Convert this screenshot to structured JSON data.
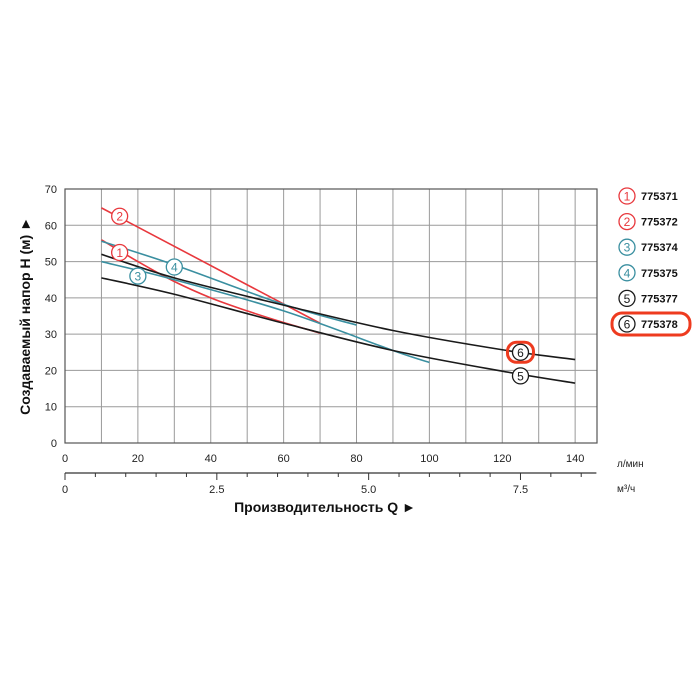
{
  "chart_data": {
    "type": "line",
    "ylabel": "Создаваемый напор Н (м) ►",
    "xlabel": "Производительность Q ►",
    "x_unit": "л/мин",
    "x2_unit": "м³/ч",
    "xlim": [
      0,
      146
    ],
    "ylim": [
      0,
      70
    ],
    "x_ticks": [
      0,
      20,
      40,
      60,
      80,
      100,
      120,
      140
    ],
    "y_ticks": [
      0,
      10,
      20,
      30,
      40,
      50,
      60,
      70
    ],
    "x2_ticks": [
      "0",
      "2.5",
      "5.0",
      "7.5"
    ],
    "x2_tick_values": [
      0,
      2.5,
      5.0,
      7.5
    ],
    "grid": true,
    "legend_position": "right",
    "series": [
      {
        "id": "1",
        "name": "775371",
        "color": "#e8383d",
        "label_at": [
          15,
          52.5
        ],
        "points": [
          [
            10,
            56
          ],
          [
            20,
            50
          ],
          [
            30,
            44.5
          ],
          [
            40,
            40
          ],
          [
            50,
            36.4
          ],
          [
            60,
            33.2
          ],
          [
            70,
            30.3
          ]
        ]
      },
      {
        "id": "2",
        "name": "775372",
        "color": "#e8383d",
        "label_at": [
          15,
          62.5
        ],
        "points": [
          [
            10,
            64.8
          ],
          [
            70,
            33
          ]
        ]
      },
      {
        "id": "3",
        "name": "775374",
        "color": "#3a8fa0",
        "label_at": [
          20,
          46
        ],
        "points": [
          [
            10,
            50
          ],
          [
            30,
            45
          ],
          [
            60,
            36.4
          ],
          [
            90,
            25.5
          ],
          [
            100,
            22.2
          ]
        ]
      },
      {
        "id": "4",
        "name": "775375",
        "color": "#3a8fa0",
        "label_at": [
          30,
          48.5
        ],
        "points": [
          [
            10,
            55.6
          ],
          [
            30,
            49.1
          ],
          [
            60,
            38.2
          ],
          [
            80,
            32.5
          ]
        ]
      },
      {
        "id": "5",
        "name": "775377",
        "color": "#1a1a1a",
        "label_at": [
          125,
          18.5
        ],
        "points": [
          [
            10,
            45.5
          ],
          [
            30,
            41
          ],
          [
            60,
            33
          ],
          [
            90,
            25.5
          ],
          [
            120,
            19.8
          ],
          [
            140,
            16.5
          ]
        ]
      },
      {
        "id": "6",
        "name": "775378",
        "color": "#1a1a1a",
        "label_at": [
          125,
          25
        ],
        "highlighted": true,
        "points": [
          [
            10,
            52
          ],
          [
            30,
            45.5
          ],
          [
            60,
            38
          ],
          [
            90,
            31
          ],
          [
            120,
            25.7
          ],
          [
            140,
            23
          ]
        ]
      }
    ],
    "highlight_color": "#ee3b1f"
  }
}
